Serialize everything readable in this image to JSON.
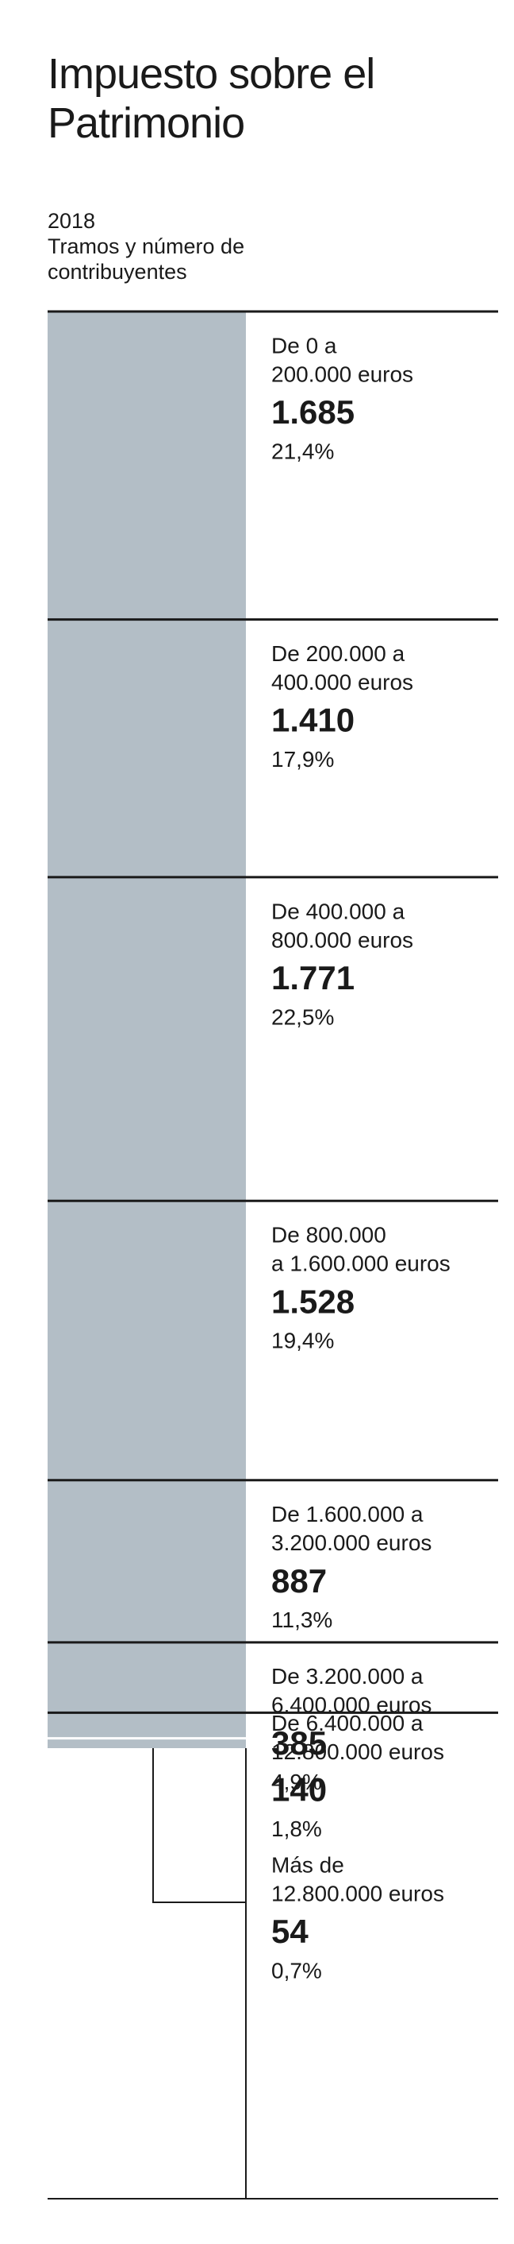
{
  "chart_data": {
    "type": "stacked-column",
    "title": "Impuesto sobre el Patrimonio",
    "subtitle": "2018",
    "description": "Tramos y número de contribuyentes",
    "categories": [
      [
        "De 0 a",
        "200.000 euros"
      ],
      [
        "De 200.000 a",
        "400.000 euros"
      ],
      [
        "De 400.000 a",
        "800.000 euros"
      ],
      [
        "De 800.000",
        "a 1.600.000 euros"
      ],
      [
        "De 1.600.000 a",
        "3.200.000 euros"
      ],
      [
        "De 3.200.000 a",
        "6.400.000 euros"
      ],
      [
        "De 6.400.000 a",
        "12.800.000 euros"
      ],
      [
        "Más de",
        "12.800.000 euros"
      ]
    ],
    "values": [
      1685,
      1410,
      1771,
      1528,
      887,
      385,
      140,
      54
    ],
    "value_labels": [
      "1.685",
      "1.410",
      "1.771",
      "1.528",
      "887",
      "385",
      "140",
      "54"
    ],
    "shares": [
      21.4,
      17.9,
      22.5,
      19.4,
      11.3,
      4.9,
      1.8,
      0.7
    ],
    "share_labels": [
      "21,4%",
      "17,9%",
      "22,5%",
      "19,4%",
      "11,3%",
      "4,9%",
      "1,8%",
      "0,7%"
    ],
    "color": "#b3bec6"
  }
}
